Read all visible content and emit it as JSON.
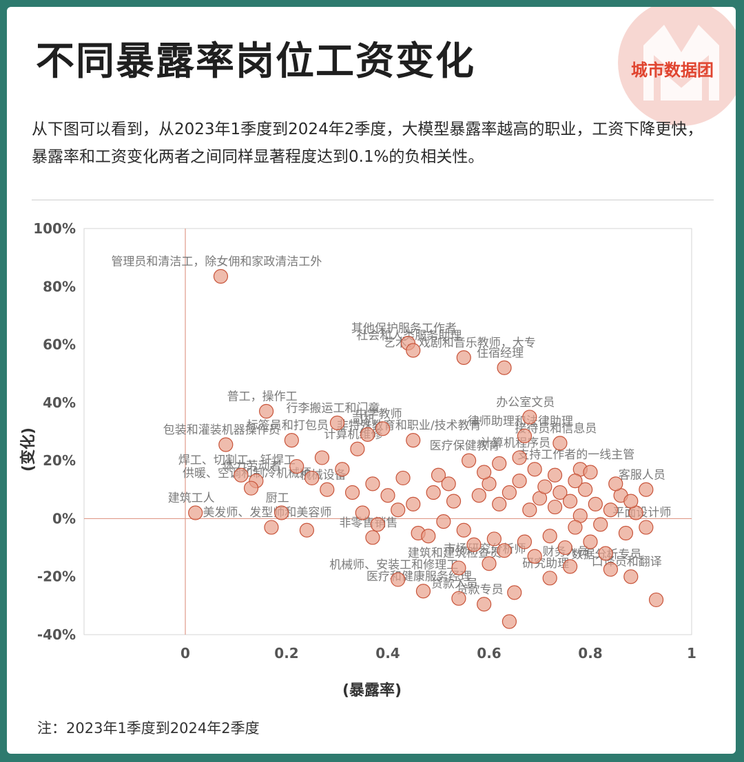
{
  "header": {
    "title": "不同暴露率岗位工资变化",
    "brand": "城市数据团",
    "description": "从下图可以看到，从2023年1季度到2024年2季度，大模型暴露率越高的职业，工资下降更快，暴露率和工资变化两者之间同样显著程度达到0.1%的负相关性。"
  },
  "footer": {
    "note": "注：2023年1季度到2024年2季度"
  },
  "colors": {
    "background": "#2e7a6e",
    "point_fill": "#e8a08a",
    "point_stroke": "#c8543a",
    "zero_line": "#e09a8a",
    "label_text": "#7a7a7a",
    "logo": "#f7d7d2"
  },
  "chart_data": {
    "type": "scatter",
    "xlabel": "(暴露率)",
    "ylabel": "(变化)",
    "xlim": [
      -0.2,
      1.0
    ],
    "ylim": [
      -40,
      100
    ],
    "x_ticks": [
      0,
      0.2,
      0.4,
      0.6,
      0.8,
      1
    ],
    "x_tick_labels": [
      "0",
      "0.2",
      "0.4",
      "0.6",
      "0.8",
      "1"
    ],
    "y_ticks": [
      -40,
      -20,
      0,
      20,
      40,
      60,
      80,
      100
    ],
    "y_tick_labels": [
      "-40%",
      "-20%",
      "0%",
      "20%",
      "40%",
      "60%",
      "80%",
      "100%"
    ],
    "grid": false,
    "points": [
      {
        "x": 0.07,
        "y": 83.5,
        "label": "管理员和清洁工，除女佣和家政清洁工外"
      },
      {
        "x": 0.44,
        "y": 60.5,
        "label": "其他保护服务工作者"
      },
      {
        "x": 0.45,
        "y": 58,
        "label": "社会和人类服务助理"
      },
      {
        "x": 0.55,
        "y": 55.5,
        "label": "艺术、戏剧和音乐教师，大专"
      },
      {
        "x": 0.63,
        "y": 52,
        "label": "住宿经理"
      },
      {
        "x": 0.16,
        "y": 37,
        "label": "普工，操作工"
      },
      {
        "x": 0.3,
        "y": 33,
        "label": "行李搬运工和门童"
      },
      {
        "x": 0.68,
        "y": 35,
        "label": "办公室文员"
      },
      {
        "x": 0.08,
        "y": 25.5,
        "label": "包装和灌装机器操作员"
      },
      {
        "x": 0.21,
        "y": 27,
        "label": "标签员和打包员"
      },
      {
        "x": 0.36,
        "y": 29,
        "label": "司机"
      },
      {
        "x": 0.39,
        "y": 31,
        "label": "中学教师"
      },
      {
        "x": 0.45,
        "y": 27,
        "label": "非特殊教育和职业/技术教育"
      },
      {
        "x": 0.67,
        "y": 28.5,
        "label": "律师助理和法律助理"
      },
      {
        "x": 0.74,
        "y": 26,
        "label": "接待员和信息员"
      },
      {
        "x": 0.11,
        "y": 15,
        "label": "焊工、切割工、钎焊工"
      },
      {
        "x": 0.14,
        "y": 13,
        "label": "体力劳动者"
      },
      {
        "x": 0.13,
        "y": 10.5,
        "label": "供暖、空调和制冷机械师"
      },
      {
        "x": 0.02,
        "y": 2,
        "label": "建筑工人"
      },
      {
        "x": 0.17,
        "y": -3,
        "label": "美发师、发型师和美容师"
      },
      {
        "x": 0.19,
        "y": 2,
        "label": "厨工"
      },
      {
        "x": 0.24,
        "y": -4,
        "label": ""
      },
      {
        "x": 0.34,
        "y": 24,
        "label": "计算机维修"
      },
      {
        "x": 0.28,
        "y": 10,
        "label": "机械设备"
      },
      {
        "x": 0.33,
        "y": 9,
        "label": ""
      },
      {
        "x": 0.37,
        "y": 12,
        "label": ""
      },
      {
        "x": 0.42,
        "y": 3,
        "label": ""
      },
      {
        "x": 0.37,
        "y": -6.5,
        "label": "非零售销售"
      },
      {
        "x": 0.46,
        "y": -5,
        "label": ""
      },
      {
        "x": 0.48,
        "y": -6,
        "label": ""
      },
      {
        "x": 0.42,
        "y": -21,
        "label": "机械师、安装工和修理工"
      },
      {
        "x": 0.47,
        "y": -25,
        "label": "医疗和健康服务经理"
      },
      {
        "x": 0.54,
        "y": -27.5,
        "label": "贷款入员"
      },
      {
        "x": 0.59,
        "y": -29.5,
        "label": "贷款专员"
      },
      {
        "x": 0.64,
        "y": -35.5,
        "label": ""
      },
      {
        "x": 0.65,
        "y": -25.5,
        "label": ""
      },
      {
        "x": 0.54,
        "y": -17,
        "label": "建筑和建筑检查员"
      },
      {
        "x": 0.6,
        "y": -15.5,
        "label": "市场研究分析师"
      },
      {
        "x": 0.72,
        "y": -20.5,
        "label": "研究助理"
      },
      {
        "x": 0.76,
        "y": -16.5,
        "label": "财务人员"
      },
      {
        "x": 0.84,
        "y": -17.5,
        "label": "数据分析专员"
      },
      {
        "x": 0.88,
        "y": -20,
        "label": "口译员和翻译"
      },
      {
        "x": 0.93,
        "y": -28,
        "label": ""
      },
      {
        "x": 0.91,
        "y": -3,
        "label": "平面设计师"
      },
      {
        "x": 0.91,
        "y": 10,
        "label": "客服人员"
      },
      {
        "x": 0.78,
        "y": 17,
        "label": "支持工作者的一线主管"
      },
      {
        "x": 0.66,
        "y": 21,
        "label": "计算机程序员"
      },
      {
        "x": 0.56,
        "y": 20,
        "label": "医疗保健教育"
      },
      {
        "x": 0.5,
        "y": 15,
        "label": ""
      },
      {
        "x": 0.52,
        "y": 12,
        "label": ""
      },
      {
        "x": 0.58,
        "y": 8,
        "label": ""
      },
      {
        "x": 0.6,
        "y": 12,
        "label": ""
      },
      {
        "x": 0.62,
        "y": 5,
        "label": ""
      },
      {
        "x": 0.64,
        "y": 9,
        "label": ""
      },
      {
        "x": 0.66,
        "y": 13,
        "label": ""
      },
      {
        "x": 0.68,
        "y": 3,
        "label": ""
      },
      {
        "x": 0.7,
        "y": 7,
        "label": ""
      },
      {
        "x": 0.71,
        "y": 11,
        "label": ""
      },
      {
        "x": 0.73,
        "y": 4,
        "label": ""
      },
      {
        "x": 0.74,
        "y": 9,
        "label": ""
      },
      {
        "x": 0.76,
        "y": 6,
        "label": ""
      },
      {
        "x": 0.78,
        "y": 1,
        "label": ""
      },
      {
        "x": 0.79,
        "y": 10,
        "label": ""
      },
      {
        "x": 0.81,
        "y": 5,
        "label": ""
      },
      {
        "x": 0.82,
        "y": -2,
        "label": ""
      },
      {
        "x": 0.84,
        "y": 3,
        "label": ""
      },
      {
        "x": 0.86,
        "y": 8,
        "label": ""
      },
      {
        "x": 0.87,
        "y": -5,
        "label": ""
      },
      {
        "x": 0.89,
        "y": 2,
        "label": ""
      },
      {
        "x": 0.55,
        "y": -4,
        "label": ""
      },
      {
        "x": 0.57,
        "y": -9,
        "label": ""
      },
      {
        "x": 0.61,
        "y": -7,
        "label": ""
      },
      {
        "x": 0.63,
        "y": -11,
        "label": ""
      },
      {
        "x": 0.67,
        "y": -8,
        "label": ""
      },
      {
        "x": 0.69,
        "y": -13,
        "label": ""
      },
      {
        "x": 0.72,
        "y": -6,
        "label": ""
      },
      {
        "x": 0.75,
        "y": -10,
        "label": ""
      },
      {
        "x": 0.77,
        "y": -3,
        "label": ""
      },
      {
        "x": 0.8,
        "y": -8,
        "label": ""
      },
      {
        "x": 0.83,
        "y": -12,
        "label": ""
      },
      {
        "x": 0.53,
        "y": 6,
        "label": ""
      },
      {
        "x": 0.49,
        "y": 9,
        "label": ""
      },
      {
        "x": 0.45,
        "y": 5,
        "label": ""
      },
      {
        "x": 0.43,
        "y": 14,
        "label": ""
      },
      {
        "x": 0.4,
        "y": 8,
        "label": ""
      },
      {
        "x": 0.31,
        "y": 17,
        "label": ""
      },
      {
        "x": 0.27,
        "y": 21,
        "label": ""
      },
      {
        "x": 0.25,
        "y": 14,
        "label": ""
      },
      {
        "x": 0.22,
        "y": 18,
        "label": ""
      },
      {
        "x": 0.35,
        "y": 2,
        "label": ""
      },
      {
        "x": 0.38,
        "y": -2,
        "label": ""
      },
      {
        "x": 0.51,
        "y": -1,
        "label": ""
      },
      {
        "x": 0.59,
        "y": 16,
        "label": ""
      },
      {
        "x": 0.62,
        "y": 19,
        "label": ""
      },
      {
        "x": 0.69,
        "y": 17,
        "label": ""
      },
      {
        "x": 0.73,
        "y": 15,
        "label": ""
      },
      {
        "x": 0.77,
        "y": 13,
        "label": ""
      },
      {
        "x": 0.85,
        "y": 12,
        "label": ""
      },
      {
        "x": 0.8,
        "y": 16,
        "label": ""
      },
      {
        "x": 0.88,
        "y": 6,
        "label": ""
      }
    ]
  }
}
